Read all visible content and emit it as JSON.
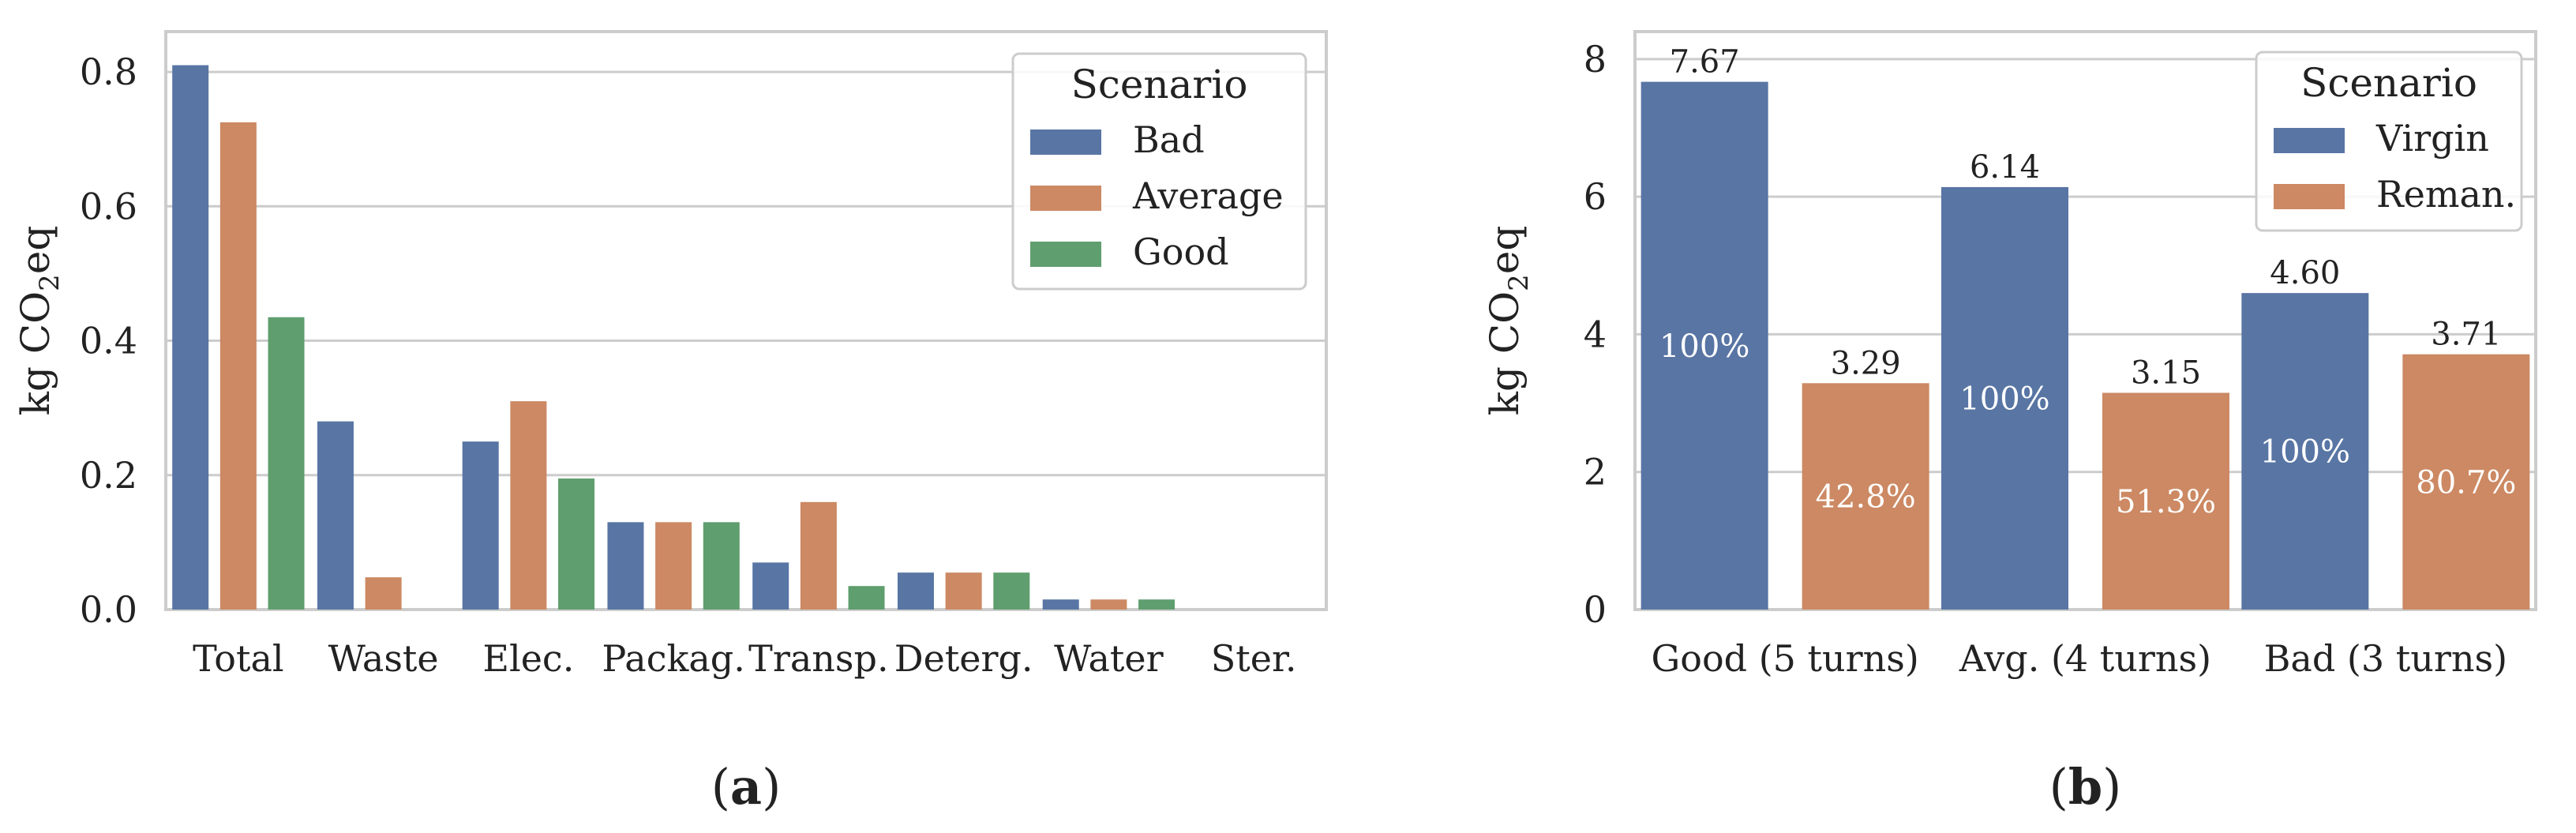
{
  "colors": {
    "blue": "#5875a4",
    "orange": "#cc8963",
    "green": "#5f9e6e",
    "grid": "#cccccc",
    "axis": "#cccccc",
    "text": "#222222"
  },
  "chart_data": [
    {
      "panel": "a",
      "sublabel": {
        "open": "(",
        "letter": "a",
        "close": ")"
      },
      "type": "bar",
      "title": "",
      "xlabel": "",
      "ylabel": {
        "main": "kg CO",
        "sub": "2",
        "tail": "eq"
      },
      "ylim": [
        0,
        0.86
      ],
      "yticks": [
        0.0,
        0.2,
        0.4,
        0.6,
        0.8
      ],
      "ytick_labels": [
        "0.0",
        "0.2",
        "0.4",
        "0.6",
        "0.8"
      ],
      "categories": [
        "Total",
        "Waste",
        "Elec.",
        "Packag.",
        "Transp.",
        "Deterg.",
        "Water",
        "Ster."
      ],
      "series": [
        {
          "name": "Bad",
          "color": "#5875a4",
          "values": [
            0.81,
            0.28,
            0.25,
            0.13,
            0.07,
            0.055,
            0.015,
            0.0
          ]
        },
        {
          "name": "Average",
          "color": "#cc8963",
          "values": [
            0.725,
            0.048,
            0.31,
            0.13,
            0.16,
            0.055,
            0.015,
            0.0
          ]
        },
        {
          "name": "Good",
          "color": "#5f9e6e",
          "values": [
            0.435,
            0.0,
            0.195,
            0.13,
            0.035,
            0.055,
            0.015,
            0.0
          ]
        }
      ],
      "legend": {
        "title": "Scenario",
        "position": "top-right"
      },
      "grid": true
    },
    {
      "panel": "b",
      "sublabel": {
        "open": "(",
        "letter": "b",
        "close": ")"
      },
      "type": "bar",
      "title": "",
      "xlabel": "",
      "ylabel": {
        "main": "kg CO",
        "sub": "2",
        "tail": "eq"
      },
      "ylim": [
        0,
        8.4
      ],
      "yticks": [
        0,
        2,
        4,
        6,
        8
      ],
      "ytick_labels": [
        "0",
        "2",
        "4",
        "6",
        "8"
      ],
      "categories": [
        "Good (5 turns)",
        "Avg. (4 turns)",
        "Bad (3 turns)"
      ],
      "series": [
        {
          "name": "Virgin",
          "color": "#5875a4",
          "values": [
            7.67,
            6.14,
            4.6
          ],
          "labels": [
            "7.67",
            "6.14",
            "4.60"
          ],
          "pct_labels": [
            "100%",
            "100%",
            "100%"
          ]
        },
        {
          "name": "Reman.",
          "color": "#cc8963",
          "values": [
            3.29,
            3.15,
            3.71
          ],
          "labels": [
            "3.29",
            "3.15",
            "3.71"
          ],
          "pct_labels": [
            "42.8%",
            "51.3%",
            "80.7%"
          ]
        }
      ],
      "legend": {
        "title": "Scenario",
        "position": "top-right"
      },
      "grid": true
    }
  ]
}
